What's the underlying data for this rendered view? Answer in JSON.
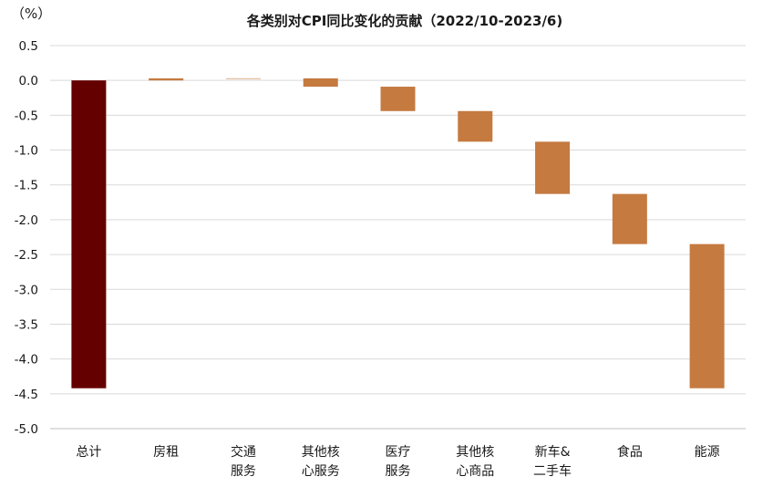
{
  "chart_data": {
    "type": "waterfall",
    "title": "各类别对CPI同比变化的贡献（2022/10-2023/6)",
    "unit_label": "（%）",
    "ylim": [
      -5.0,
      0.5
    ],
    "y_ticks": [
      "0.5",
      "0.0",
      "-0.5",
      "-1.0",
      "-1.5",
      "-2.0",
      "-2.5",
      "-3.0",
      "-3.5",
      "-4.0",
      "-4.5",
      "-5.0"
    ],
    "grid": true,
    "categories": [
      [
        "总计"
      ],
      [
        "房租"
      ],
      [
        "交通",
        "服务"
      ],
      [
        "其他核",
        "心服务"
      ],
      [
        "医疗",
        "服务"
      ],
      [
        "其他核",
        "心商品"
      ],
      [
        "新车&",
        "二手车"
      ],
      [
        "食品"
      ],
      [
        "能源"
      ]
    ],
    "bars": [
      {
        "start": 0.0,
        "end": -4.42,
        "kind": "total"
      },
      {
        "start": 0.0,
        "end": 0.03,
        "kind": "component"
      },
      {
        "start": 0.03,
        "end": 0.03,
        "kind": "component"
      },
      {
        "start": 0.03,
        "end": -0.09,
        "kind": "component"
      },
      {
        "start": -0.09,
        "end": -0.44,
        "kind": "component"
      },
      {
        "start": -0.44,
        "end": -0.88,
        "kind": "component"
      },
      {
        "start": -0.88,
        "end": -1.63,
        "kind": "component"
      },
      {
        "start": -1.63,
        "end": -2.35,
        "kind": "component"
      },
      {
        "start": -2.35,
        "end": -4.42,
        "kind": "component"
      }
    ],
    "colors": {
      "total": "#650000",
      "component": "#c57a40",
      "grid": "#d9d9d9",
      "axis": "#bfbfbf"
    }
  }
}
